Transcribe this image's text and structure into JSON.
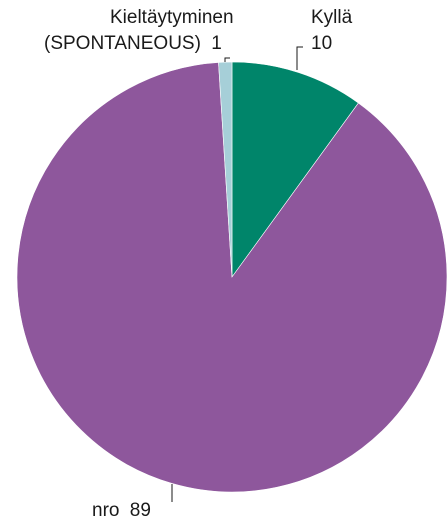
{
  "chart_data": {
    "type": "pie",
    "title": "",
    "slices": [
      {
        "label": "Kyllä",
        "value": 10,
        "value_label": "10",
        "color": "#00856a"
      },
      {
        "label": "nro",
        "value": 89,
        "value_label": "89",
        "color": "#8e579c"
      },
      {
        "label_lines": [
          "Kieltäytyminen",
          "(SPONTANEOUS)"
        ],
        "value": 1,
        "value_label": "1",
        "color": "#a6cfd8"
      }
    ],
    "legend": "none"
  }
}
